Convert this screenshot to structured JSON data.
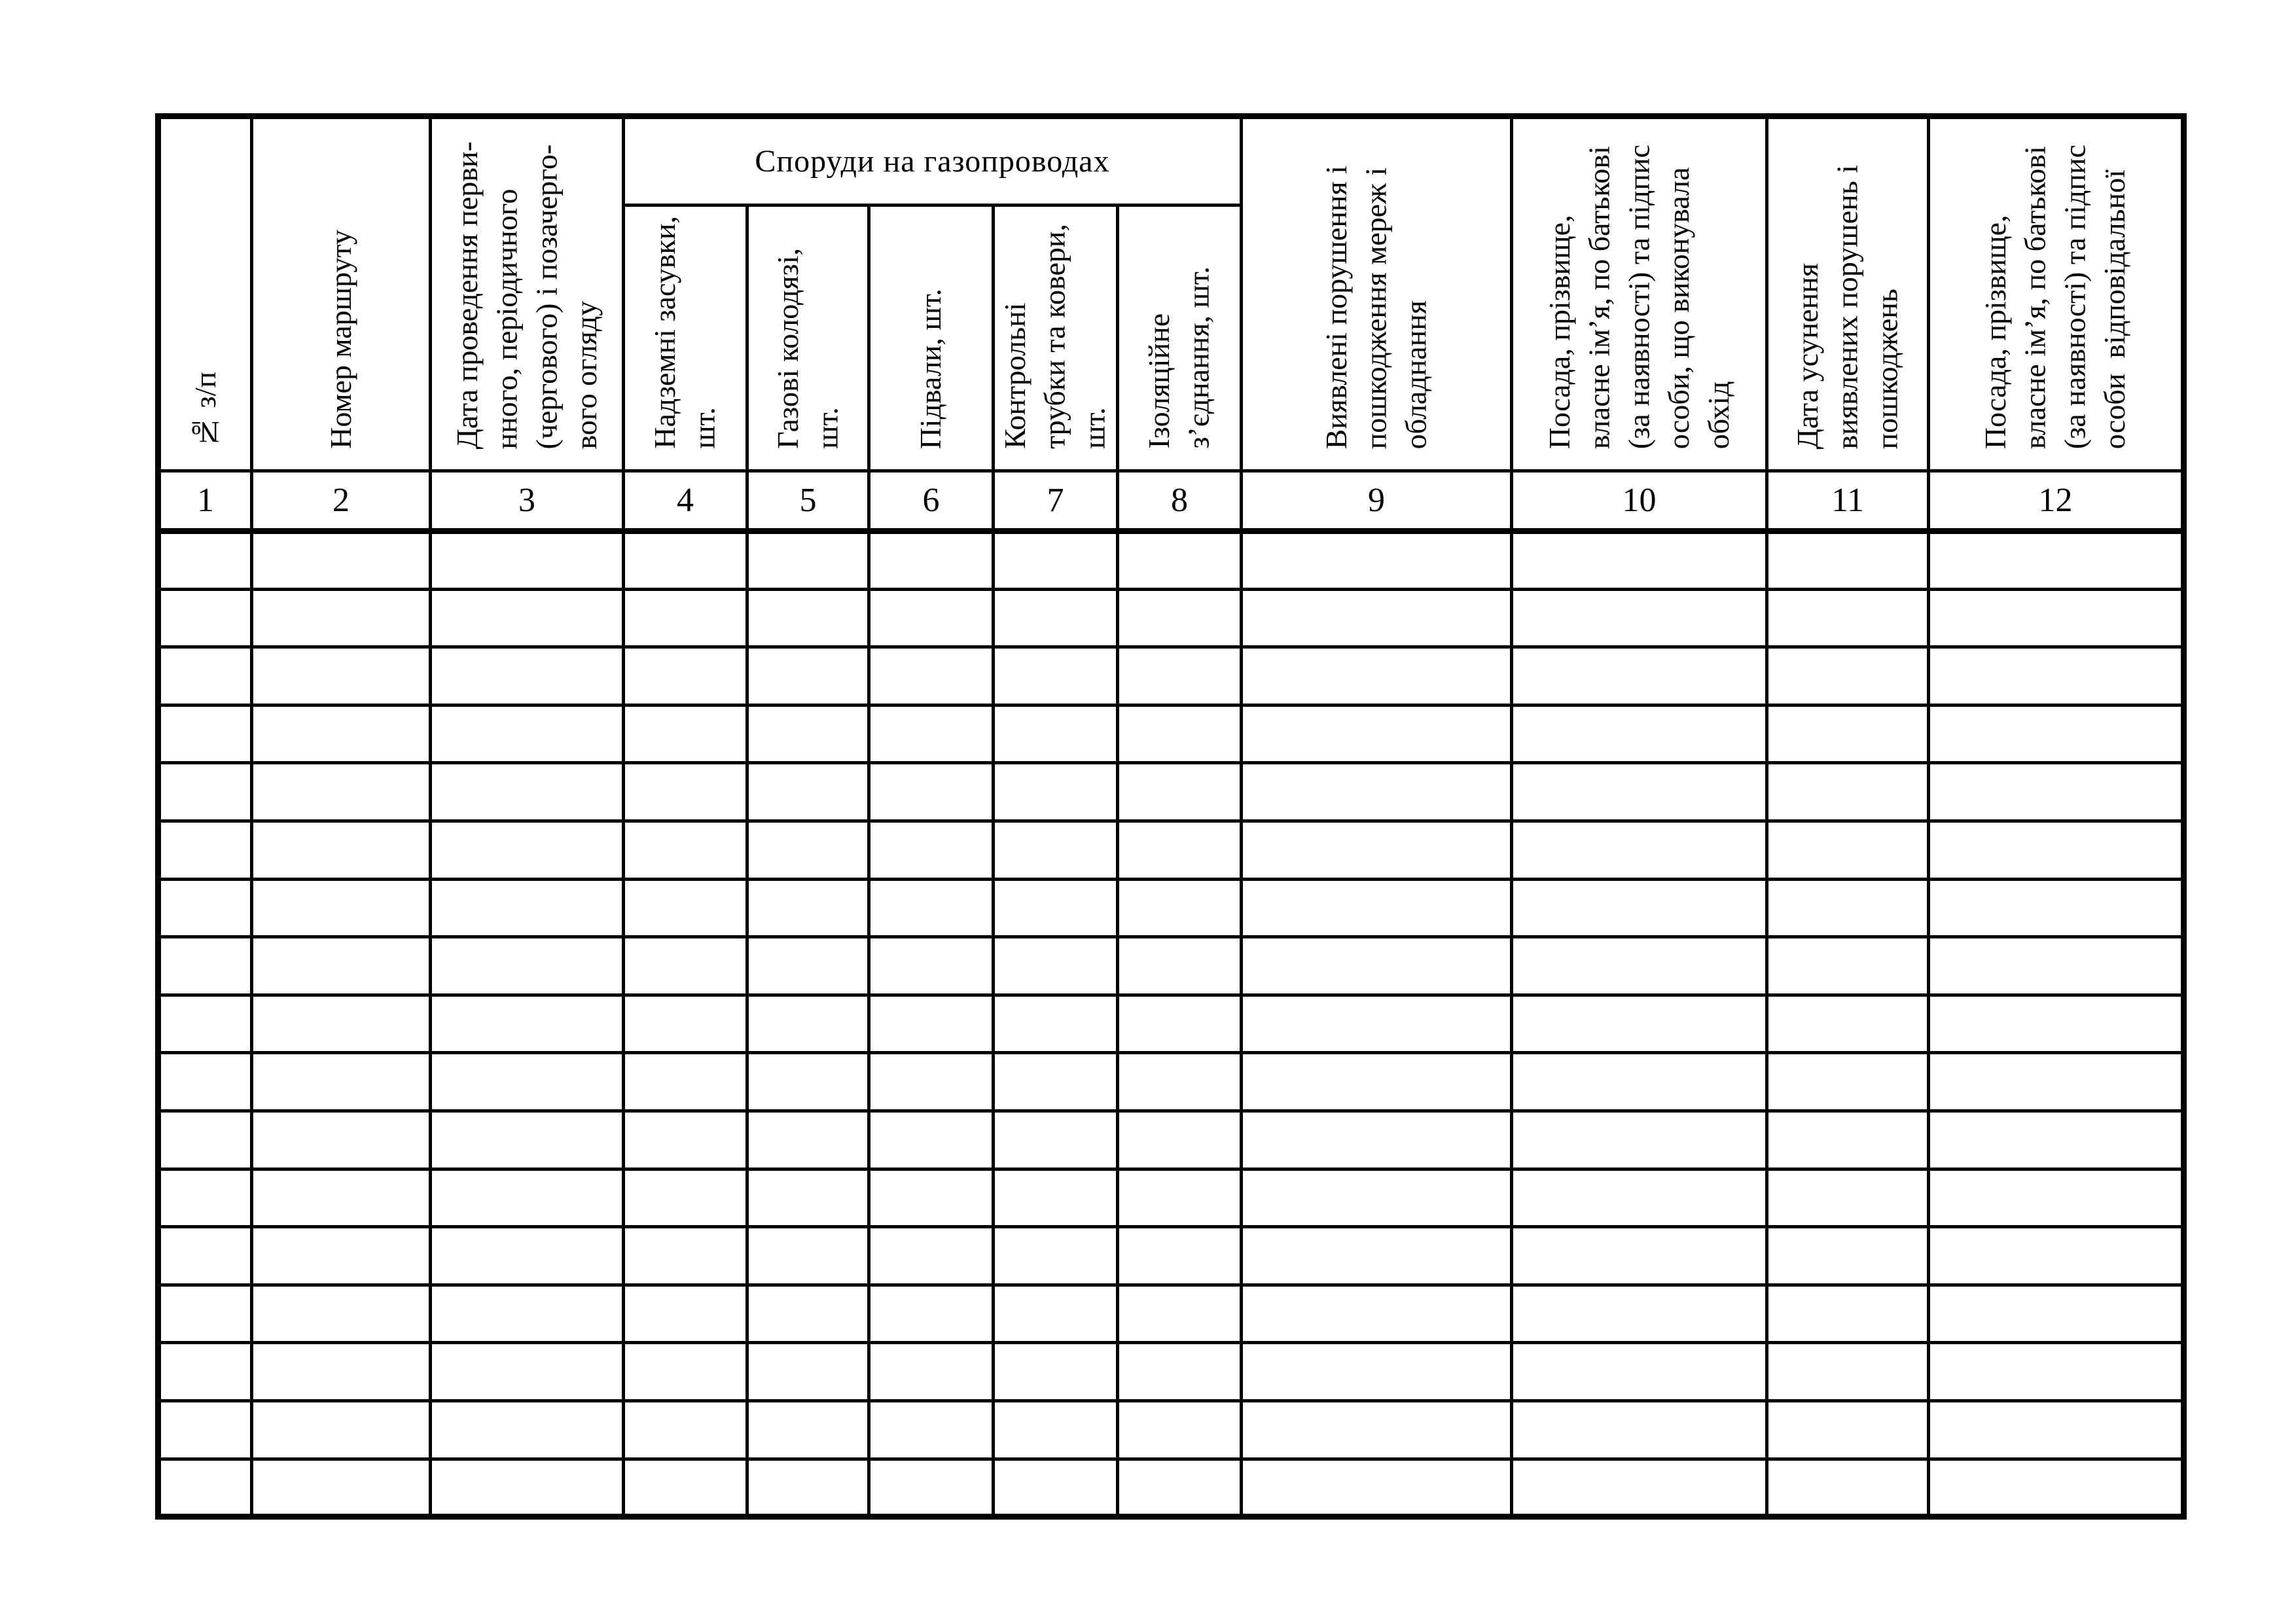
{
  "table": {
    "border_color": "#000000",
    "group_header": {
      "label": "Споруди на газопроводах",
      "spans_columns": "4-8"
    },
    "columns": [
      {
        "number": "1",
        "header": "№ з/п"
      },
      {
        "number": "2",
        "header": "Номер маршруту"
      },
      {
        "number": "3",
        "header": "Дата проведення перви-\nнного, періодичного\n(чергового) і позачерго-\nвого огляду"
      },
      {
        "number": "4",
        "header": "Надземні засувки,\nшт."
      },
      {
        "number": "5",
        "header": "Газові колодязі,\nшт."
      },
      {
        "number": "6",
        "header": "Підвали, шт."
      },
      {
        "number": "7",
        "header": "Контрольні\nтрубки та ковери,\nшт."
      },
      {
        "number": "8",
        "header": "Ізоляційне\nз’єднання, шт."
      },
      {
        "number": "9",
        "header": "Виявлені порушення і\nпошкодження мереж і\nобладнання"
      },
      {
        "number": "10",
        "header": "Посада, прізвище,\nвласне ім’я, по батькові\n(за наявності) та підпис\nособи, що виконувала\nобхід"
      },
      {
        "number": "11",
        "header": "Дата усунення\nвиявлених порушень і\nпошкоджень"
      },
      {
        "number": "12",
        "header": "Посада, прізвище,\nвласне ім’я, по батькові\n(за наявності) та підпис\nособи  відповідальної"
      }
    ],
    "empty_rows": 17,
    "cells_per_row": 12
  }
}
